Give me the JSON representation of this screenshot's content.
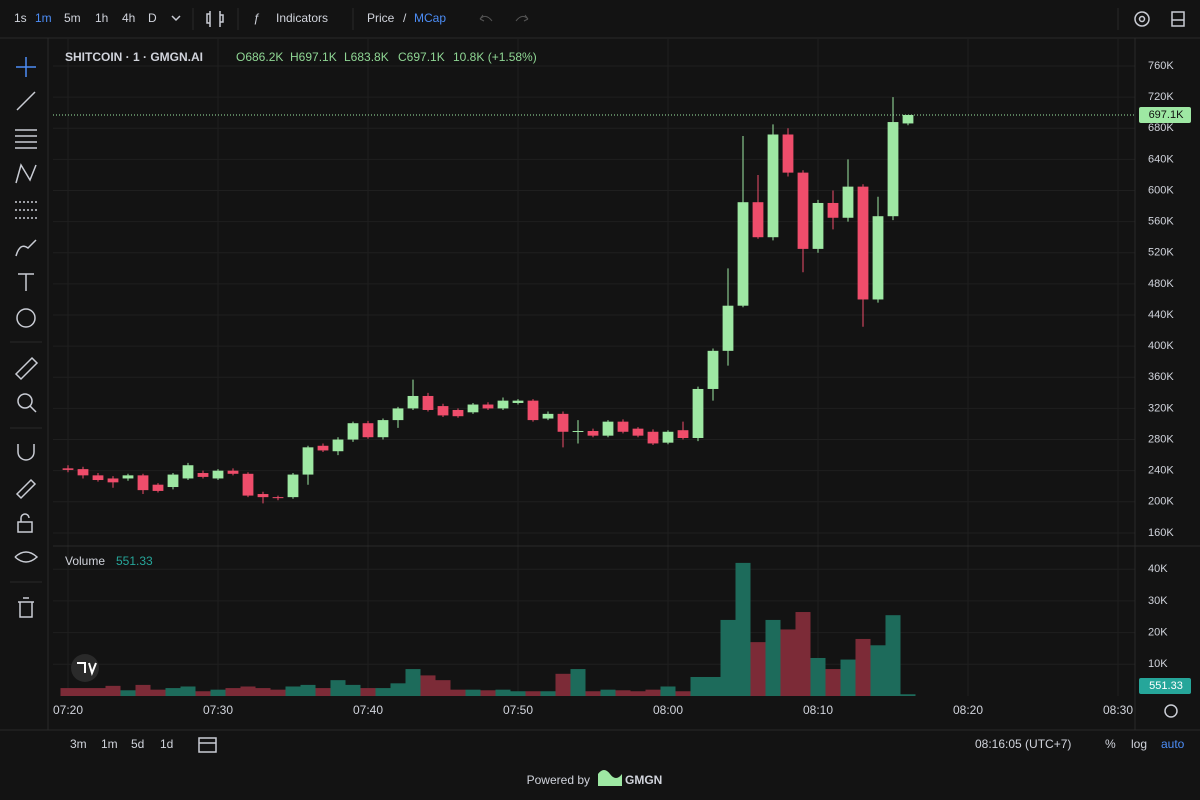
{
  "toolbar": {
    "intervals": [
      "1s",
      "1m",
      "5m",
      "1h",
      "4h",
      "D"
    ],
    "indicators": "Indicators",
    "price": "Price",
    "slash": "/",
    "mcap": "MCap"
  },
  "bottom_bar": {
    "ranges": [
      "3m",
      "1m",
      "5d",
      "1d"
    ],
    "clock": "08:16:05 (UTC+7)",
    "percent": "%",
    "log": "log",
    "auto": "auto"
  },
  "footer": {
    "powered": "Powered by",
    "brand": "GMGN"
  },
  "chart_data": [
    {
      "type": "candlestick",
      "legend": {
        "title": "SHITCOIN · 1 · GMGN.AI",
        "open": "O686.2K",
        "high": "H697.1K",
        "low": "L683.8K",
        "close": "C697.1K",
        "change": "10.8K (+1.58%)"
      },
      "x": [
        "07:20",
        "07:21",
        "07:22",
        "07:23",
        "07:24",
        "07:25",
        "07:26",
        "07:27",
        "07:28",
        "07:29",
        "07:30",
        "07:31",
        "07:32",
        "07:33",
        "07:34",
        "07:35",
        "07:36",
        "07:37",
        "07:38",
        "07:39",
        "07:40",
        "07:41",
        "07:42",
        "07:43",
        "07:44",
        "07:45",
        "07:46",
        "07:47",
        "07:48",
        "07:49",
        "07:50",
        "07:51",
        "07:52",
        "07:53",
        "07:54",
        "07:55",
        "07:56",
        "07:57",
        "07:58",
        "07:59",
        "08:00",
        "08:01",
        "08:02",
        "08:03",
        "08:04",
        "08:05",
        "08:06",
        "08:07",
        "08:08",
        "08:09",
        "08:10",
        "08:11",
        "08:12",
        "08:13",
        "08:14",
        "08:15",
        "08:16"
      ],
      "open": [
        243000,
        242000,
        234000,
        230000,
        230000,
        234000,
        222000,
        219000,
        230000,
        237000,
        230000,
        240000,
        236000,
        210000,
        206000,
        206000,
        235000,
        272000,
        265000,
        280000,
        301000,
        283000,
        305000,
        320000,
        336000,
        323000,
        318000,
        315000,
        325000,
        320000,
        327000,
        330000,
        307000,
        313000,
        290000,
        291000,
        285000,
        303000,
        294000,
        290000,
        276000,
        292000,
        282000,
        345000,
        394000,
        452000,
        585000,
        540000,
        672000,
        623000,
        525000,
        584000,
        565000,
        605000,
        460000,
        567000,
        686200
      ],
      "high": [
        247000,
        245000,
        237000,
        233000,
        236000,
        236000,
        224000,
        237000,
        250000,
        240000,
        242000,
        243000,
        238000,
        213000,
        208000,
        237000,
        272000,
        275000,
        283000,
        303000,
        304000,
        307000,
        322000,
        357000,
        340000,
        326000,
        320000,
        327000,
        328000,
        334000,
        332000,
        332000,
        316000,
        316000,
        305000,
        294000,
        305000,
        306000,
        296000,
        293000,
        292000,
        303000,
        348000,
        397000,
        500000,
        670000,
        620000,
        685000,
        680000,
        626000,
        588000,
        600000,
        640000,
        608000,
        592000,
        720000,
        697100
      ],
      "low": [
        238000,
        230000,
        226000,
        218000,
        227000,
        210000,
        212000,
        216000,
        228000,
        230000,
        228000,
        234000,
        206000,
        198000,
        202000,
        204000,
        222000,
        264000,
        260000,
        277000,
        281000,
        280000,
        295000,
        318000,
        316000,
        309000,
        308000,
        313000,
        318000,
        318000,
        325000,
        303000,
        305000,
        270000,
        275000,
        283000,
        283000,
        288000,
        283000,
        273000,
        274000,
        280000,
        278000,
        330000,
        375000,
        450000,
        538000,
        536000,
        618000,
        495000,
        520000,
        550000,
        560000,
        425000,
        456000,
        562000,
        683800
      ],
      "close": [
        241000,
        234000,
        228000,
        225000,
        234000,
        215000,
        214000,
        235000,
        247000,
        232000,
        240000,
        236000,
        208000,
        206000,
        205000,
        235000,
        270000,
        266000,
        280000,
        301000,
        283000,
        305000,
        320000,
        336000,
        318000,
        311000,
        310000,
        325000,
        320000,
        330000,
        330000,
        305000,
        313000,
        290000,
        291000,
        285000,
        303000,
        290000,
        285000,
        275000,
        290000,
        282000,
        345000,
        394000,
        452000,
        585000,
        540000,
        672000,
        623000,
        525000,
        584000,
        565000,
        605000,
        460000,
        567000,
        688000,
        697100
      ],
      "up_color": "#9ee8a3",
      "down_color": "#ef4d6b",
      "last_price": {
        "value": 697100,
        "label": "697.1K"
      },
      "xlim": [
        "07:19",
        "08:31"
      ],
      "xticks": [
        "07:20",
        "07:30",
        "07:40",
        "07:50",
        "08:00",
        "08:10",
        "08:20",
        "08:30"
      ],
      "ylim": [
        144500,
        787000
      ],
      "yticks": [
        {
          "value": 160000,
          "label": "160K"
        },
        {
          "value": 200000,
          "label": "200K"
        },
        {
          "value": 240000,
          "label": "240K"
        },
        {
          "value": 280000,
          "label": "280K"
        },
        {
          "value": 320000,
          "label": "320K"
        },
        {
          "value": 360000,
          "label": "360K"
        },
        {
          "value": 400000,
          "label": "400K"
        },
        {
          "value": 440000,
          "label": "440K"
        },
        {
          "value": 480000,
          "label": "480K"
        },
        {
          "value": 520000,
          "label": "520K"
        },
        {
          "value": 560000,
          "label": "560K"
        },
        {
          "value": 600000,
          "label": "600K"
        },
        {
          "value": 640000,
          "label": "640K"
        },
        {
          "value": 680000,
          "label": "680K"
        },
        {
          "value": 720000,
          "label": "720K"
        },
        {
          "value": 760000,
          "label": "760K"
        }
      ],
      "grid": true
    },
    {
      "type": "bar",
      "title": "Volume",
      "values": [
        2500,
        2500,
        2500,
        3200,
        1800,
        3500,
        2000,
        2500,
        3000,
        1500,
        2000,
        2500,
        3000,
        2500,
        2000,
        3000,
        3500,
        2500,
        5000,
        3500,
        2500,
        2500,
        4000,
        8500,
        6500,
        5000,
        2000,
        2000,
        1800,
        2000,
        1500,
        1500,
        1500,
        7000,
        8500,
        1500,
        2000,
        1800,
        1500,
        2000,
        3000,
        1500,
        6000,
        6000,
        24000,
        42000,
        17000,
        24000,
        21000,
        26500,
        12000,
        8500,
        11500,
        18000,
        16000,
        25500,
        551.33
      ],
      "up_color": "#1d6b5b",
      "down_color": "#7c2b37",
      "label_color": "#26a69a",
      "ylim": [
        0,
        46700
      ],
      "yticks": [
        {
          "value": 10000,
          "label": "10K"
        },
        {
          "value": 20000,
          "label": "20K"
        },
        {
          "value": 30000,
          "label": "30K"
        },
        {
          "value": 40000,
          "label": "40K"
        }
      ],
      "grid": true
    }
  ]
}
